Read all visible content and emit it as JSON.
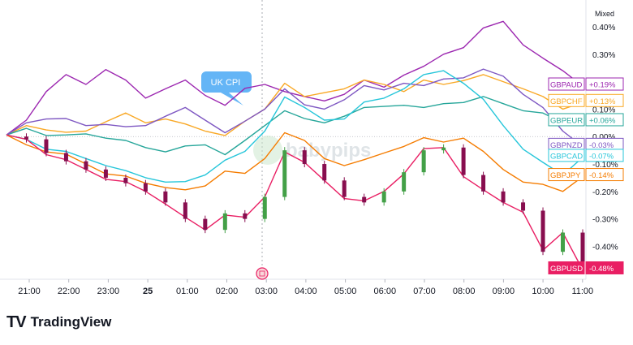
{
  "chart_data": {
    "type": "line",
    "scale_label": "Mixed",
    "annotation": "UK CPI",
    "watermark": "babypips",
    "x_ticks": [
      "21:00",
      "22:00",
      "23:00",
      "25",
      "01:00",
      "02:00",
      "03:00",
      "04:00",
      "05:00",
      "06:00",
      "07:00",
      "08:00",
      "09:00",
      "10:00",
      "11:00"
    ],
    "y_ticks": [
      "0.40%",
      "0.30%",
      "0.20%",
      "0.10%",
      "0.00%",
      "-0.10%",
      "-0.20%",
      "-0.30%",
      "-0.40%"
    ],
    "ylim": [
      -0.52,
      0.48
    ],
    "series": [
      {
        "name": "GBPAUD",
        "color": "#9c27b0",
        "last": "+0.19%",
        "values": [
          0.0,
          0.06,
          0.17,
          0.22,
          0.19,
          0.25,
          0.2,
          0.14,
          0.18,
          0.2,
          0.15,
          0.12,
          0.17,
          0.19,
          0.17,
          0.14,
          0.13,
          0.16,
          0.2,
          0.18,
          0.23,
          0.25,
          0.3,
          0.33,
          0.39,
          0.42,
          0.34,
          0.28,
          0.24,
          0.19
        ]
      },
      {
        "name": "GBPCHF",
        "color": "#f9a825",
        "last": "+0.13%",
        "values": [
          0.0,
          0.04,
          0.03,
          0.01,
          0.02,
          0.06,
          0.08,
          0.05,
          0.07,
          0.04,
          0.02,
          0.01,
          0.05,
          0.1,
          0.2,
          0.14,
          0.16,
          0.18,
          0.2,
          0.19,
          0.17,
          0.2,
          0.19,
          0.21,
          0.22,
          0.2,
          0.18,
          0.14,
          0.1,
          0.13
        ]
      },
      {
        "name": "GBPEUR",
        "color": "#26a69a",
        "last": "+0.06%",
        "values": [
          0.0,
          0.03,
          0.01,
          0.0,
          0.01,
          0.0,
          -0.02,
          -0.04,
          -0.05,
          -0.04,
          -0.03,
          -0.06,
          -0.02,
          0.04,
          0.1,
          0.06,
          0.05,
          0.08,
          0.1,
          0.11,
          0.12,
          0.1,
          0.12,
          0.13,
          0.14,
          0.12,
          0.1,
          0.08,
          0.05,
          0.06
        ]
      },
      {
        "name": "GBPNZD",
        "color": "#7e57c2",
        "last": "-0.03%",
        "values": [
          0.0,
          0.05,
          0.07,
          0.06,
          0.04,
          0.05,
          0.03,
          0.04,
          0.08,
          0.1,
          0.06,
          0.02,
          0.05,
          0.1,
          0.18,
          0.11,
          0.1,
          0.14,
          0.18,
          0.17,
          0.2,
          0.18,
          0.21,
          0.22,
          0.24,
          0.22,
          0.16,
          0.1,
          0.02,
          -0.03
        ]
      },
      {
        "name": "GBPCAD",
        "color": "#26c6da",
        "last": "-0.07%",
        "values": [
          0.0,
          -0.01,
          -0.04,
          -0.06,
          -0.08,
          -0.1,
          -0.13,
          -0.15,
          -0.16,
          -0.17,
          -0.14,
          -0.08,
          -0.06,
          0.02,
          0.15,
          0.1,
          0.06,
          0.07,
          0.12,
          0.14,
          0.18,
          0.22,
          0.24,
          0.2,
          0.13,
          0.04,
          -0.04,
          -0.1,
          -0.14,
          -0.07
        ]
      },
      {
        "name": "GBPJPY",
        "color": "#f57c00",
        "last": "-0.14%",
        "values": [
          0.0,
          -0.03,
          -0.05,
          -0.07,
          -0.1,
          -0.13,
          -0.15,
          -0.17,
          -0.18,
          -0.2,
          -0.18,
          -0.12,
          -0.14,
          -0.08,
          0.02,
          -0.02,
          -0.08,
          -0.1,
          -0.09,
          -0.06,
          -0.03,
          -0.01,
          -0.02,
          0.0,
          -0.06,
          -0.12,
          -0.16,
          -0.18,
          -0.2,
          -0.14
        ]
      },
      {
        "name": "GBPUSD",
        "color": "#e91e63",
        "last": "-0.48%",
        "values": [
          0.0,
          -0.01,
          -0.06,
          -0.09,
          -0.12,
          -0.15,
          -0.17,
          -0.2,
          -0.24,
          -0.3,
          -0.34,
          -0.28,
          -0.3,
          -0.22,
          -0.05,
          -0.1,
          -0.16,
          -0.22,
          -0.24,
          -0.2,
          -0.13,
          -0.05,
          -0.04,
          -0.14,
          -0.2,
          -0.24,
          -0.27,
          -0.42,
          -0.35,
          -0.48
        ]
      }
    ]
  },
  "footer": {
    "brand": "TradingView",
    "logo": "TV"
  }
}
